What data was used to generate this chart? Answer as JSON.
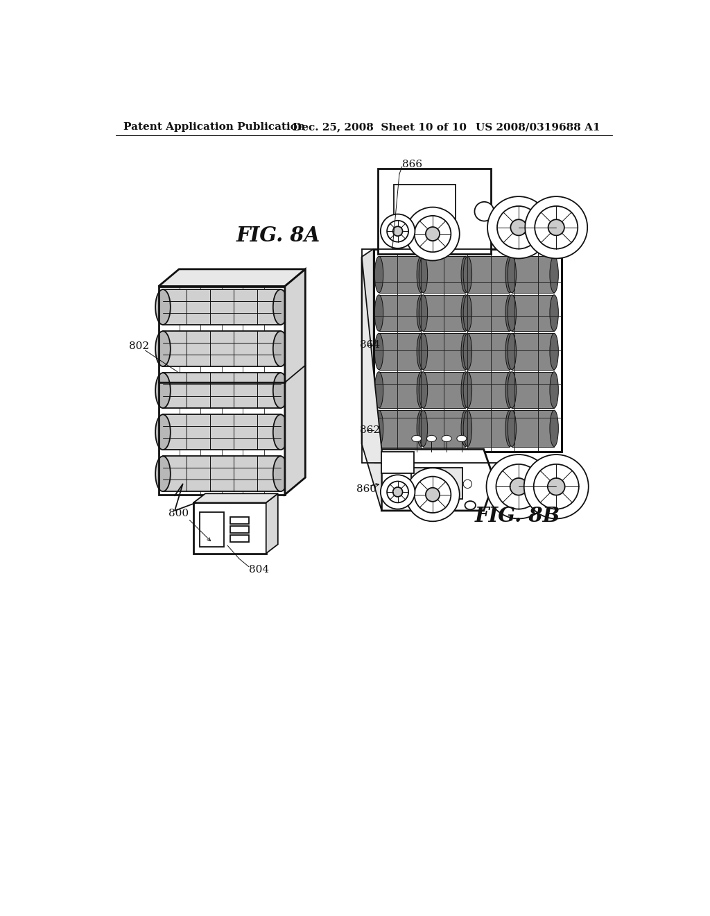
{
  "header_left": "Patent Application Publication",
  "header_mid": "Dec. 25, 2008  Sheet 10 of 10",
  "header_right": "US 2008/0319688 A1",
  "fig8a_label": "FIG. 8A",
  "fig8b_label": "FIG. 8B",
  "bg_color": "#ffffff",
  "line_color": "#111111",
  "header_fontsize": 11,
  "label_fontsize": 11
}
